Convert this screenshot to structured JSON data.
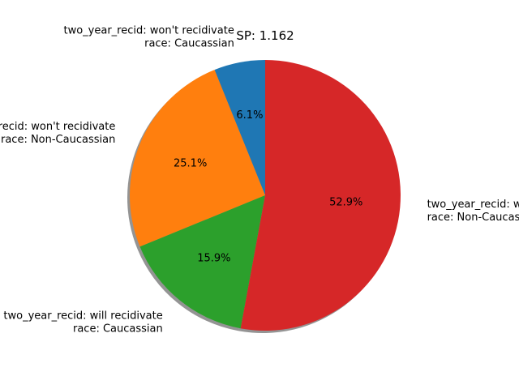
{
  "chart_data": {
    "type": "pie",
    "title": "SP: 1.162",
    "slices": [
      {
        "label_lines": [
          "two_year_recid: won't recidivate",
          "race: Caucassian"
        ],
        "value": 6.1,
        "pct_label": "6.1%",
        "color": "#1f77b4"
      },
      {
        "label_lines": [
          "two_year_recid: won't recidivate",
          "race: Non-Caucassian"
        ],
        "value": 25.1,
        "pct_label": "25.1%",
        "color": "#ff7f0e"
      },
      {
        "label_lines": [
          "two_year_recid: will recidivate",
          "race: Caucassian"
        ],
        "value": 15.9,
        "pct_label": "15.9%",
        "color": "#2ca02c"
      },
      {
        "label_lines": [
          "two_year_recid: will recidivate",
          "race: Non-Caucassian"
        ],
        "value": 52.9,
        "pct_label": "52.9%",
        "color": "#d62728"
      }
    ],
    "start_angle_deg": 90,
    "direction": "counterclockwise",
    "shadow": true
  }
}
